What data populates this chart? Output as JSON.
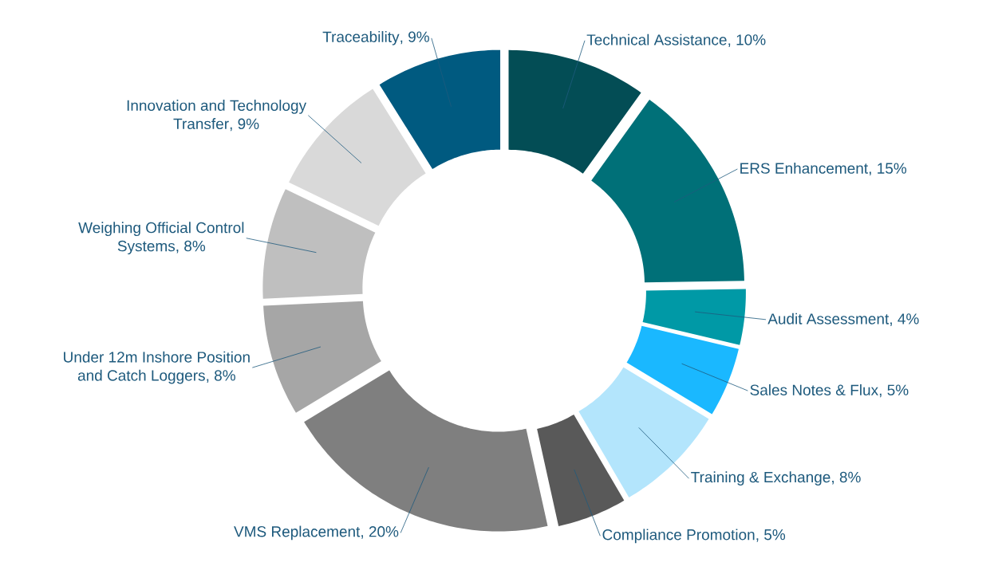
{
  "chart_data": {
    "type": "donut",
    "categories": [
      "Technical Assistance",
      "ERS Enhancement",
      "Audit Assessment",
      "Sales Notes & Flux",
      "Training & Exchange",
      "Compliance Promotion",
      "VMS Replacement",
      "Under 12m Inshore Position and Catch Loggers",
      "Weighing Official Control Systems",
      "Innovation and Technology Transfer",
      "Traceability"
    ],
    "values": [
      10,
      15,
      4,
      5,
      8,
      5,
      20,
      8,
      8,
      9,
      9
    ],
    "value_labels": [
      ", 10%",
      ", 15%",
      ", 4%",
      ", 5%",
      ", 8%",
      ", 5%",
      ", 20%",
      ", 8%",
      ", 8%",
      ", 9%",
      ", 9%"
    ],
    "colors": [
      "#034d55",
      "#007078",
      "#0099a6",
      "#1ab8ff",
      "#b3e5fc",
      "#595959",
      "#7f7f7f",
      "#a6a6a6",
      "#bfbfbf",
      "#d9d9d9",
      "#005a80"
    ]
  }
}
